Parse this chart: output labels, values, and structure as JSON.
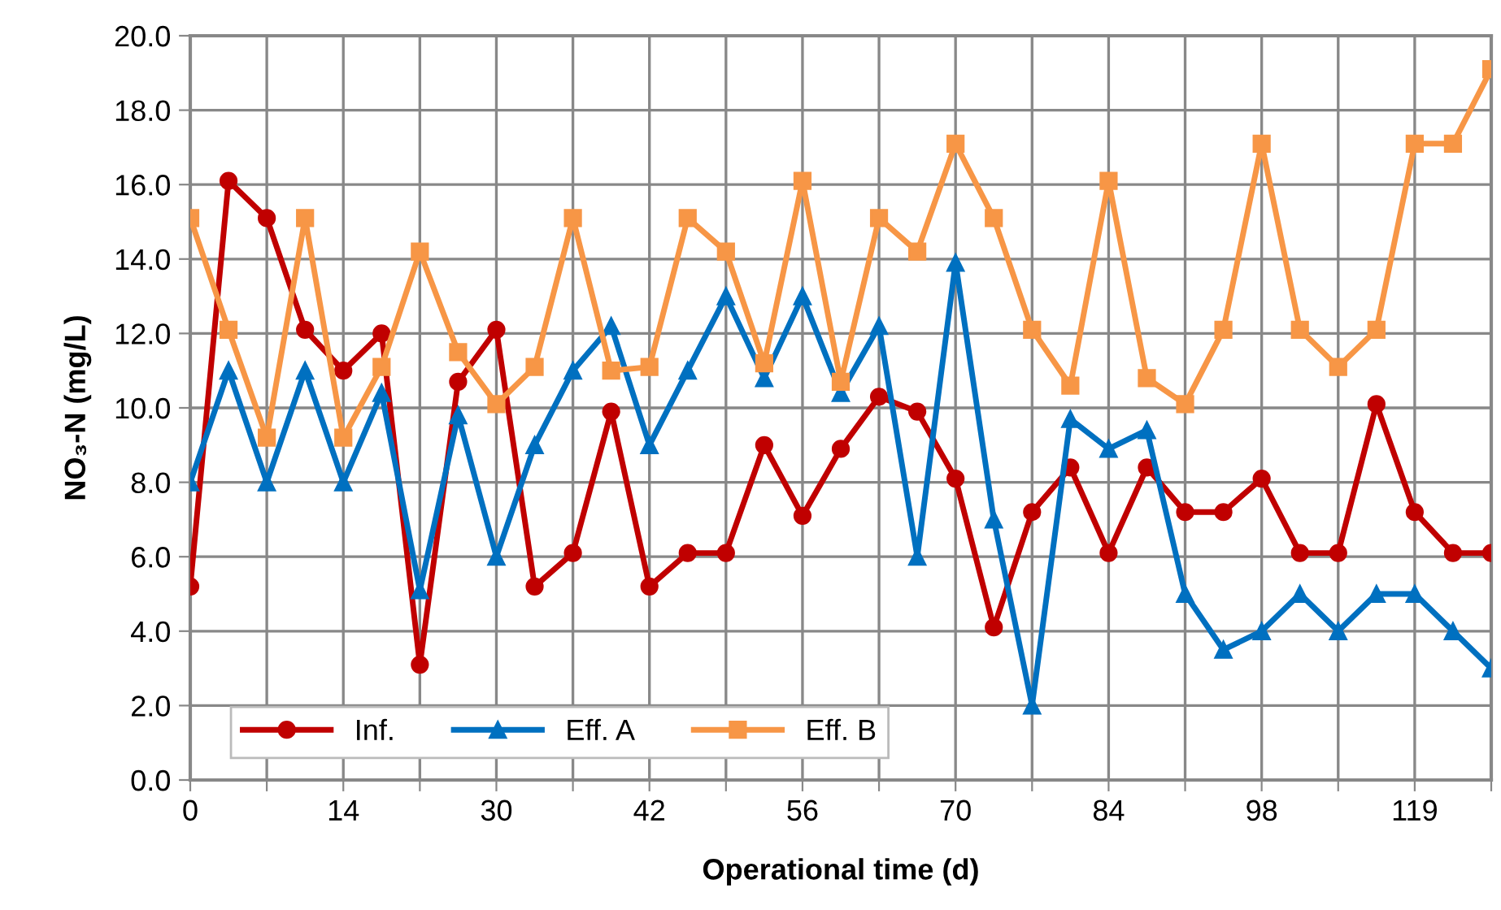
{
  "chart_data": {
    "type": "line",
    "xlabel": "Operational time (d)",
    "ylabel": "NO₃-N (mg/L)",
    "categories": [
      "0",
      null,
      null,
      null,
      "14",
      null,
      null,
      null,
      "30",
      null,
      null,
      null,
      "42",
      null,
      null,
      null,
      "56",
      null,
      null,
      null,
      "70",
      null,
      null,
      null,
      "84",
      null,
      null,
      null,
      "98",
      null,
      null,
      null,
      "119",
      null,
      null
    ],
    "series": [
      {
        "name": "Inf.",
        "color": "#c00000",
        "marker": "circle",
        "values": [
          5.2,
          16.1,
          15.1,
          12.1,
          11.0,
          12.0,
          3.1,
          10.7,
          12.1,
          5.2,
          6.1,
          9.9,
          5.2,
          6.1,
          6.1,
          9.0,
          7.1,
          8.9,
          10.3,
          9.9,
          8.1,
          4.1,
          7.2,
          8.4,
          6.1,
          8.4,
          7.2,
          7.2,
          8.1,
          6.1,
          6.1,
          10.1,
          7.2,
          6.1,
          6.1
        ]
      },
      {
        "name": "Eff. A",
        "color": "#0070c0",
        "marker": "triangle",
        "values": [
          8.0,
          11.0,
          8.0,
          11.0,
          8.0,
          10.4,
          5.1,
          9.8,
          6.0,
          9.0,
          11.0,
          12.2,
          9.0,
          11.0,
          13.0,
          10.8,
          13.0,
          10.4,
          12.2,
          6.0,
          13.9,
          7.0,
          2.0,
          9.7,
          8.9,
          9.4,
          5.0,
          3.5,
          4.0,
          5.0,
          4.0,
          5.0,
          5.0,
          4.0,
          3.0
        ]
      },
      {
        "name": "Eff. B",
        "color": "#f79646",
        "marker": "square",
        "values": [
          15.1,
          12.1,
          9.2,
          15.1,
          9.2,
          11.1,
          14.2,
          11.5,
          10.1,
          11.1,
          15.1,
          11.0,
          11.1,
          15.1,
          14.2,
          11.2,
          16.1,
          10.7,
          15.1,
          14.2,
          17.1,
          15.1,
          12.1,
          10.6,
          16.1,
          10.8,
          10.1,
          12.1,
          17.1,
          12.1,
          11.1,
          12.1,
          17.1,
          17.1,
          19.1
        ]
      }
    ],
    "ylim": [
      0,
      20
    ],
    "yticks": [
      {
        "value": 0,
        "label": "0.0"
      },
      {
        "value": 2,
        "label": "2.0"
      },
      {
        "value": 4,
        "label": "4.0"
      },
      {
        "value": 6,
        "label": "6.0"
      },
      {
        "value": 8,
        "label": "8.0"
      },
      {
        "value": 10,
        "label": "10.0"
      },
      {
        "value": 12,
        "label": "12.0"
      },
      {
        "value": 14,
        "label": "14.0"
      },
      {
        "value": 16,
        "label": "16.0"
      },
      {
        "value": 18,
        "label": "18.0"
      },
      {
        "value": 20,
        "label": "20.0"
      }
    ],
    "grid": true,
    "legend": "bottom left",
    "line_style": "solid"
  }
}
